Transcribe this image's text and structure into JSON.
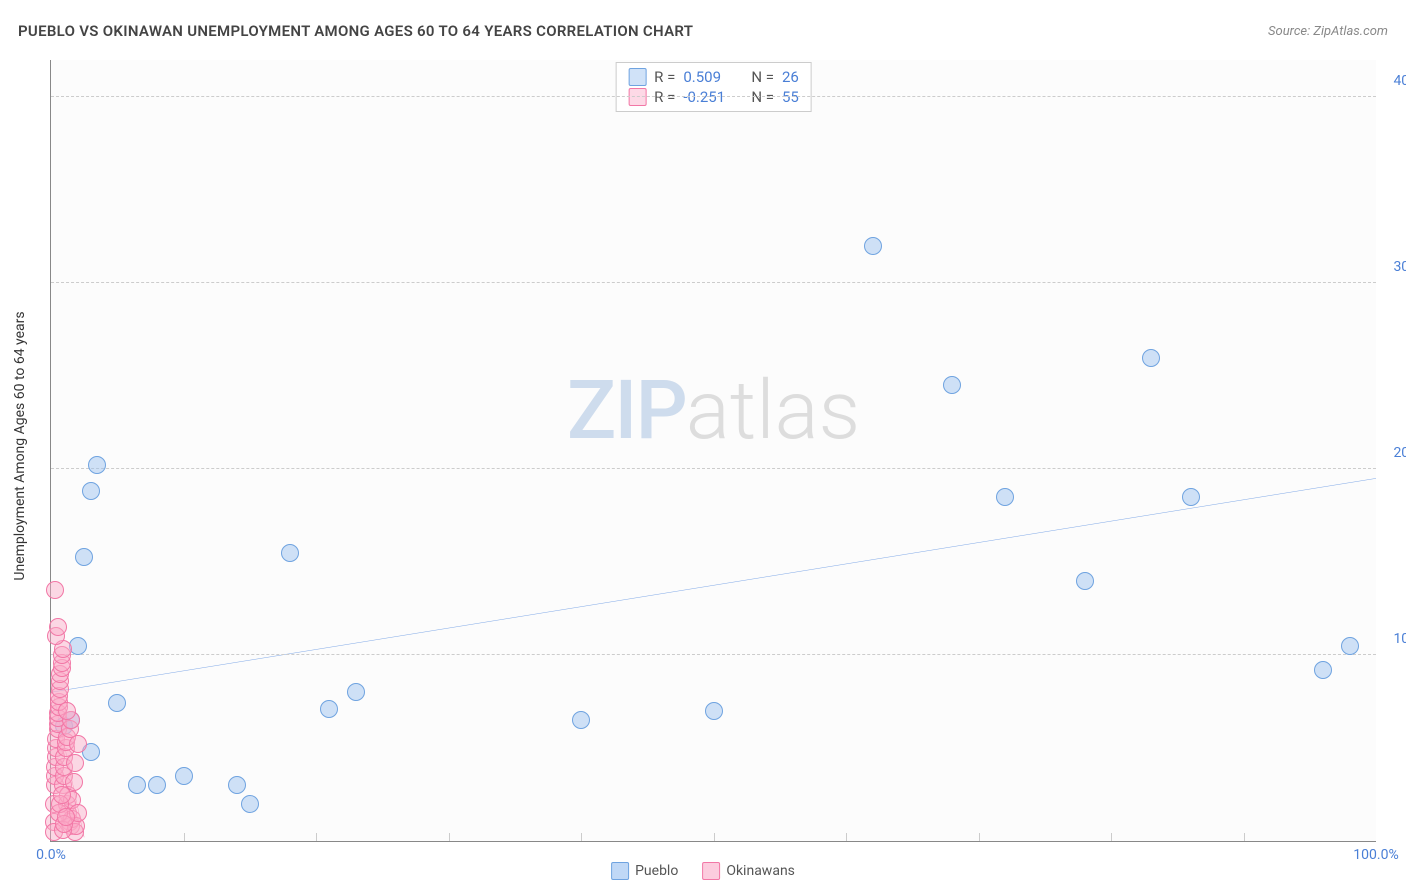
{
  "title": "PUEBLO VS OKINAWAN UNEMPLOYMENT AMONG AGES 60 TO 64 YEARS CORRELATION CHART",
  "source": "Source: ZipAtlas.com",
  "y_axis_title": "Unemployment Among Ages 60 to 64 years",
  "watermark": {
    "part1": "ZIP",
    "part2": "atlas"
  },
  "chart": {
    "type": "scatter",
    "xlim": [
      0,
      100
    ],
    "ylim": [
      0,
      42
    ],
    "x_ticks": [
      {
        "v": 0.0,
        "label": "0.0%"
      },
      {
        "v": 100.0,
        "label": "100.0%"
      }
    ],
    "x_minor_ticks": [
      10,
      20,
      30,
      40,
      50,
      60,
      70,
      80,
      90
    ],
    "y_ticks": [
      {
        "v": 10.0,
        "label": "10.0%"
      },
      {
        "v": 20.0,
        "label": "20.0%"
      },
      {
        "v": 30.0,
        "label": "30.0%"
      },
      {
        "v": 40.0,
        "label": "40.0%"
      }
    ],
    "background_color": "#fcfcfc",
    "grid_color": "#cccccc",
    "axis_color": "#888888",
    "tick_label_color": "#4a7fd6",
    "marker_radius": 9,
    "marker_stroke_width": 1.5,
    "series": [
      {
        "name": "Pueblo",
        "fill": "rgba(150,190,240,0.45)",
        "stroke": "#6fa3e0",
        "trend": {
          "x1": 0,
          "y1": 8.0,
          "x2": 100,
          "y2": 19.5,
          "color": "#2b71d9",
          "width": 2
        },
        "R": "0.509",
        "N": "26",
        "points": [
          [
            1.0,
            6.2
          ],
          [
            1.5,
            6.5
          ],
          [
            2.0,
            10.5
          ],
          [
            2.5,
            15.3
          ],
          [
            3.0,
            18.8
          ],
          [
            3.5,
            20.2
          ],
          [
            3.0,
            4.8
          ],
          [
            5.0,
            7.4
          ],
          [
            6.5,
            3.0
          ],
          [
            8.0,
            3.0
          ],
          [
            10.0,
            3.5
          ],
          [
            14.0,
            3.0
          ],
          [
            15.0,
            2.0
          ],
          [
            18.0,
            15.5
          ],
          [
            21.0,
            7.1
          ],
          [
            23.0,
            8.0
          ],
          [
            40.0,
            6.5
          ],
          [
            50.0,
            7.0
          ],
          [
            62.0,
            32.0
          ],
          [
            68.0,
            24.5
          ],
          [
            72.0,
            18.5
          ],
          [
            78.0,
            14.0
          ],
          [
            83.0,
            26.0
          ],
          [
            86.0,
            18.5
          ],
          [
            96.0,
            9.2
          ],
          [
            98.0,
            10.5
          ]
        ]
      },
      {
        "name": "Okinawans",
        "fill": "rgba(250,170,200,0.45)",
        "stroke": "#f277a6",
        "trend": {
          "x1": 0,
          "y1": 8.5,
          "x2": 2.5,
          "y2": 0.2,
          "color": "#e63976",
          "width": 2
        },
        "R": "-0.251",
        "N": "55",
        "points": [
          [
            0.2,
            1.0
          ],
          [
            0.2,
            2.0
          ],
          [
            0.3,
            3.0
          ],
          [
            0.3,
            3.5
          ],
          [
            0.3,
            4.0
          ],
          [
            0.4,
            4.5
          ],
          [
            0.4,
            5.0
          ],
          [
            0.4,
            5.5
          ],
          [
            0.5,
            6.0
          ],
          [
            0.5,
            6.3
          ],
          [
            0.5,
            6.6
          ],
          [
            0.5,
            6.9
          ],
          [
            0.6,
            7.2
          ],
          [
            0.6,
            7.5
          ],
          [
            0.6,
            7.8
          ],
          [
            0.7,
            8.2
          ],
          [
            0.7,
            8.6
          ],
          [
            0.7,
            9.0
          ],
          [
            0.8,
            9.3
          ],
          [
            0.8,
            9.6
          ],
          [
            0.8,
            10.0
          ],
          [
            0.9,
            10.3
          ],
          [
            0.9,
            3.0
          ],
          [
            1.0,
            3.5
          ],
          [
            1.0,
            4.0
          ],
          [
            1.0,
            4.5
          ],
          [
            1.1,
            5.0
          ],
          [
            1.1,
            5.3
          ],
          [
            1.2,
            5.6
          ],
          [
            1.2,
            2.0
          ],
          [
            1.3,
            2.5
          ],
          [
            1.3,
            1.5
          ],
          [
            1.4,
            1.0
          ],
          [
            1.4,
            6.0
          ],
          [
            1.5,
            6.5
          ],
          [
            1.5,
            0.8
          ],
          [
            1.6,
            1.2
          ],
          [
            1.6,
            2.2
          ],
          [
            1.7,
            3.2
          ],
          [
            1.8,
            0.5
          ],
          [
            1.8,
            4.2
          ],
          [
            1.9,
            0.8
          ],
          [
            2.0,
            1.5
          ],
          [
            2.0,
            5.2
          ],
          [
            0.3,
            13.5
          ],
          [
            0.4,
            11.0
          ],
          [
            0.5,
            11.5
          ],
          [
            0.2,
            0.5
          ],
          [
            0.6,
            1.5
          ],
          [
            0.7,
            2.0
          ],
          [
            0.8,
            2.5
          ],
          [
            0.9,
            0.6
          ],
          [
            1.0,
            0.9
          ],
          [
            1.1,
            1.3
          ],
          [
            1.2,
            7.0
          ]
        ]
      }
    ]
  },
  "stats_labels": {
    "R": "R =",
    "N": "N ="
  },
  "legend": [
    {
      "label": "Pueblo",
      "fill": "rgba(150,190,240,0.6)",
      "stroke": "#6fa3e0"
    },
    {
      "label": "Okinawans",
      "fill": "rgba(250,170,200,0.6)",
      "stroke": "#f277a6"
    }
  ]
}
